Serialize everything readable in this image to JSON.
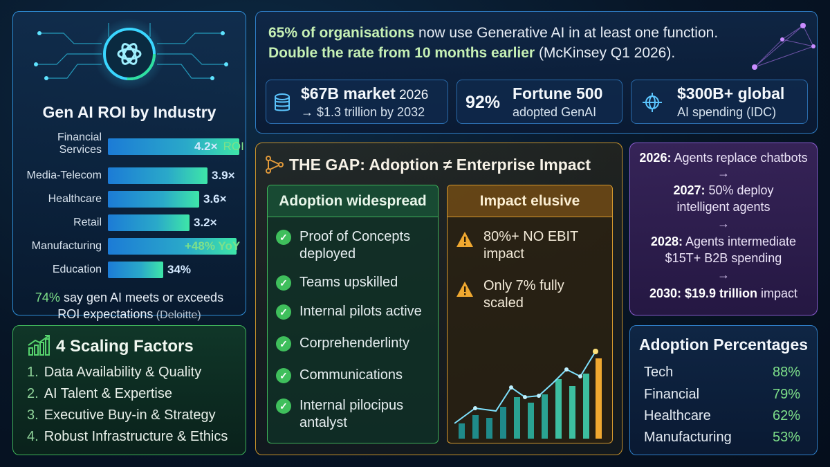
{
  "roi": {
    "title": "Gen AI ROI by Industry",
    "rows": [
      {
        "label": "Financial\nServices",
        "value": "4.2×",
        "suffix": "ROI",
        "level": 0.95
      },
      {
        "label": "Media-Telecom",
        "value": "3.9×",
        "suffix": "",
        "level": 0.72
      },
      {
        "label": "Healthcare",
        "value": "3.6×",
        "suffix": "",
        "level": 0.66
      },
      {
        "label": "Retail",
        "value": "3.2×",
        "suffix": "",
        "level": 0.59
      },
      {
        "label": "Manufacturing",
        "value": "+48% YoY",
        "suffix": "",
        "level": 0.93
      },
      {
        "label": "Education",
        "value": "34%",
        "suffix": "",
        "level": 0.4
      }
    ],
    "footer_highlight": "74%",
    "footer_text": " say gen AI meets or exceeds",
    "footer_line2": "ROI expectations",
    "footer_source": " (Deloitte)"
  },
  "scaling": {
    "title": "4 Scaling Factors",
    "items": [
      {
        "num": "1.",
        "text": "Data Availability & Quality"
      },
      {
        "num": "2.",
        "text": "AI Talent & Expertise"
      },
      {
        "num": "3.",
        "text": "Executive Buy-in & Strategy"
      },
      {
        "num": "4.",
        "text": "Robust Infrastructure & Ethics"
      }
    ]
  },
  "headline": {
    "line1_bold": "65% of organisations",
    "line1_rest": " now use Generative AI in at least one function.",
    "line2_bold": "Double the rate from 10 months earlier",
    "line2_rest": " (McKinsey Q1 2026)."
  },
  "stats": {
    "market_big": "$67B market",
    "market_year": " 2026",
    "market_sub": "→ $1.3 trillion by 2032",
    "fortune_pct": "92%",
    "fortune_big": "Fortune 500",
    "fortune_sub": "adopted GenAI",
    "global_big": "$300B+ global",
    "global_sub": "AI spending (IDC)"
  },
  "gap": {
    "title": "THE GAP: Adoption ≠ Enterprise Impact",
    "adoption_title": "Adoption widespread",
    "adoption_items": [
      "Proof of Concepts\ndeployed",
      "Teams upskilled",
      "Internal pilots active",
      "Corprehenderlinty",
      "Communications",
      "Internal pilocipus\nantalyst"
    ],
    "impact_title": "Impact elusive",
    "impact_items": [
      "80%+ NO EBIT\nimpact",
      "Only 7% fully\nscaled"
    ]
  },
  "timeline": {
    "t2026_year": "2026:",
    "t2026_text": " Agents replace chatbots",
    "arrow": "→",
    "t2027_year": "2027:",
    "t2027_text": " 50% deploy",
    "t2027_line2": "intelligent agents",
    "t2028_year": "2028:",
    "t2028_text": " Agents intermediate",
    "t2028_line2": "$15T+ B2B spending",
    "t2030_year": "2030:",
    "t2030_bold": " $19.9 trillion",
    "t2030_text": " impact"
  },
  "adoption_pct": {
    "title": "Adoption Percentages",
    "rows": [
      {
        "label": "Tech",
        "value": "88%"
      },
      {
        "label": "Financial",
        "value": "79%"
      },
      {
        "label": "Healthcare",
        "value": "62%"
      },
      {
        "label": "Manufacturing",
        "value": "53%"
      }
    ]
  },
  "colors": {
    "accent_green": "#7ee08a",
    "accent_blue": "#2f8fd8",
    "accent_orange": "#d6992e",
    "accent_purple": "#8a5cd0"
  }
}
